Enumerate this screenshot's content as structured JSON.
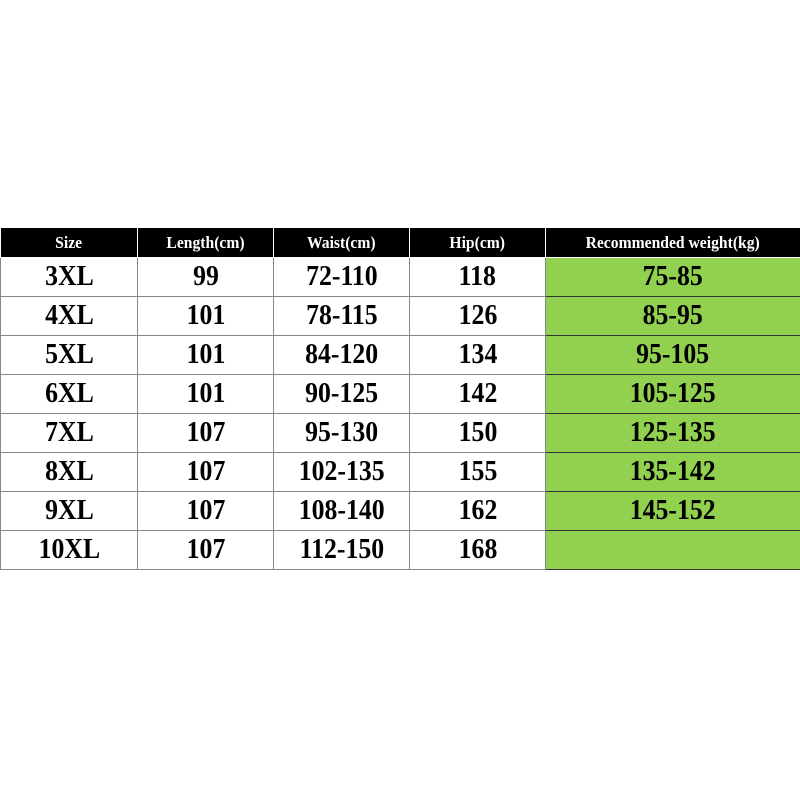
{
  "table": {
    "headers": [
      "Size",
      "Length(cm)",
      "Waist(cm)",
      "Hip(cm)",
      "Recommended weight(kg)"
    ],
    "rows": [
      [
        "3XL",
        "99",
        "72-110",
        "118",
        "75-85"
      ],
      [
        "4XL",
        "101",
        "78-115",
        "126",
        "85-95"
      ],
      [
        "5XL",
        "101",
        "84-120",
        "134",
        "95-105"
      ],
      [
        "6XL",
        "101",
        "90-125",
        "142",
        "105-125"
      ],
      [
        "7XL",
        "107",
        "95-130",
        "150",
        "125-135"
      ],
      [
        "8XL",
        "107",
        "102-135",
        "155",
        "135-142"
      ],
      [
        "9XL",
        "107",
        "108-140",
        "162",
        "145-152"
      ],
      [
        "10XL",
        "107",
        "112-150",
        "168",
        ""
      ]
    ]
  },
  "colors": {
    "header_bg": "#000000",
    "header_text": "#ffffff",
    "weight_bg": "#92D050"
  }
}
